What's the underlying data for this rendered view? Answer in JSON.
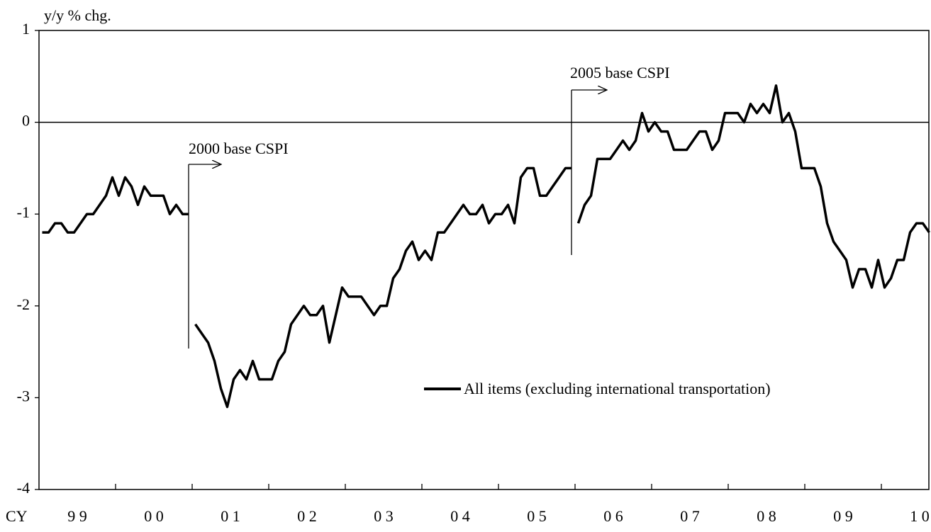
{
  "chart_data": {
    "type": "line",
    "ylabel": "y/y % chg.",
    "xlabel": "CY",
    "categories": [
      "9 9",
      "0 0",
      "0 1",
      "0 2",
      "0 3",
      "0 4",
      "0 5",
      "0 6",
      "0 7",
      "0 8",
      "0 9",
      "1 0"
    ],
    "ylim": [
      -4,
      1
    ],
    "yticks": [
      -4,
      -3,
      -2,
      -1,
      0,
      1
    ],
    "zero_line": true,
    "series": [
      {
        "name": "All items (excluding international transportation)",
        "color": "#000000",
        "pieces": [
          [
            -1.2,
            -1.2,
            -1.1,
            -1.1,
            -1.2,
            -1.2,
            -1.1,
            -1.0,
            -1.0,
            -0.9,
            -0.8,
            -0.6,
            -0.8,
            -0.6,
            -0.7,
            -0.9,
            -0.7,
            -0.8,
            -0.8,
            -0.8,
            -1.0,
            -0.9,
            -1.0,
            -1.0
          ],
          [
            -2.2,
            -2.3,
            -2.4,
            -2.6,
            -2.9,
            -3.1,
            -2.8,
            -2.7,
            -2.8,
            -2.6,
            -2.8,
            -2.8,
            -2.8,
            -2.6,
            -2.5,
            -2.2,
            -2.1,
            -2.0,
            -2.1,
            -2.1,
            -2.0,
            -2.4,
            -2.1,
            -1.8,
            -1.9,
            -1.9,
            -1.9,
            -2.0,
            -2.1,
            -2.0,
            -2.0,
            -1.7,
            -1.6,
            -1.4,
            -1.3,
            -1.5,
            -1.4,
            -1.5,
            -1.2,
            -1.2,
            -1.1,
            -1.0,
            -0.9,
            -1.0,
            -1.0,
            -0.9,
            -1.1,
            -1.0,
            -1.0,
            -0.9,
            -1.1,
            -0.6,
            -0.5,
            -0.5,
            -0.8,
            -0.8,
            -0.7,
            -0.6,
            -0.5,
            -0.5
          ],
          [
            -1.1,
            -0.9,
            -0.8,
            -0.4,
            -0.4,
            -0.4,
            -0.3,
            -0.2,
            -0.3,
            -0.2,
            0.1,
            -0.1,
            0.0,
            -0.1,
            -0.1,
            -0.3,
            -0.3,
            -0.3,
            -0.2,
            -0.1,
            -0.1,
            -0.3,
            -0.2,
            0.1,
            0.1,
            0.1,
            0.0,
            0.2,
            0.1,
            0.2,
            0.1,
            0.4,
            0.0,
            0.1,
            -0.1,
            -0.5,
            -0.5,
            -0.5,
            -0.7,
            -1.1,
            -1.3,
            -1.4,
            -1.5,
            -1.8,
            -1.6,
            -1.6,
            -1.8,
            -1.5,
            -1.8,
            -1.7,
            -1.5,
            -1.5,
            -1.2,
            -1.1,
            -1.1,
            -1.2
          ]
        ]
      }
    ],
    "annotations": [
      "2000 base CSPI",
      "2005 base CSPI"
    ]
  }
}
